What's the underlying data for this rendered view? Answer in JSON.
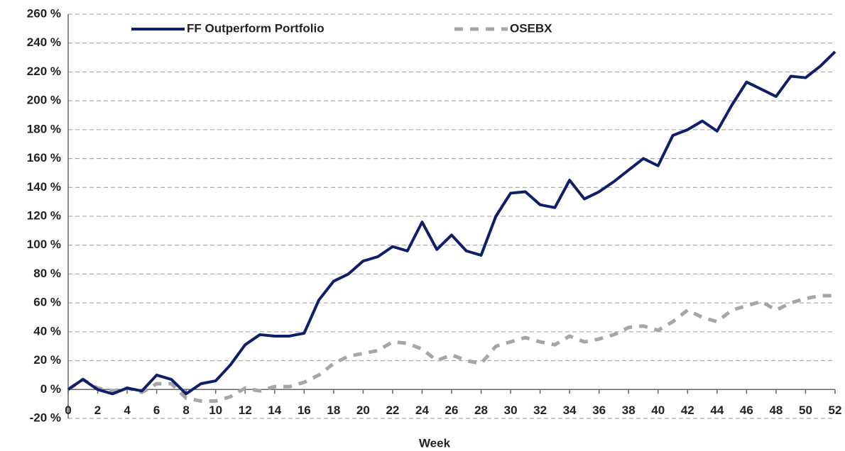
{
  "chart_data": {
    "type": "line",
    "x_label": "Week",
    "x": [
      0,
      1,
      2,
      3,
      4,
      5,
      6,
      7,
      8,
      9,
      10,
      11,
      12,
      13,
      14,
      15,
      16,
      17,
      18,
      19,
      20,
      21,
      22,
      23,
      24,
      25,
      26,
      27,
      28,
      29,
      30,
      31,
      32,
      33,
      34,
      35,
      36,
      37,
      38,
      39,
      40,
      41,
      42,
      43,
      44,
      45,
      46,
      47,
      48,
      49,
      50,
      51,
      52
    ],
    "series": [
      {
        "name": "FF Outperform Portfolio",
        "color": "#0d1f6b",
        "style": "solid",
        "values": [
          0,
          7,
          0,
          -3,
          1,
          -1,
          10,
          7,
          -3,
          4,
          6,
          17,
          31,
          38,
          37,
          37,
          39,
          62,
          75,
          80,
          89,
          92,
          99,
          96,
          116,
          97,
          107,
          96,
          93,
          120,
          136,
          137,
          128,
          126,
          145,
          132,
          137,
          144,
          152,
          160,
          155,
          176,
          180,
          186,
          179,
          197,
          213,
          208,
          203,
          217,
          216,
          224,
          234
        ]
      },
      {
        "name": "OSEBX",
        "color": "#a6a6a6",
        "style": "dashed",
        "values": [
          0,
          7,
          1,
          -1,
          1,
          -2,
          4,
          4,
          -6,
          -8,
          -8,
          -5,
          1,
          -1,
          2,
          2,
          5,
          10,
          18,
          23,
          25,
          27,
          33,
          32,
          28,
          20,
          24,
          20,
          18,
          30,
          33,
          36,
          33,
          31,
          37,
          33,
          35,
          38,
          43,
          44,
          41,
          47,
          55,
          50,
          47,
          55,
          58,
          61,
          55,
          60,
          63,
          65,
          65
        ]
      }
    ],
    "xlim": [
      0,
      52
    ],
    "xticks": [
      0,
      2,
      4,
      6,
      8,
      10,
      12,
      14,
      16,
      18,
      20,
      22,
      24,
      26,
      28,
      30,
      32,
      34,
      36,
      38,
      40,
      42,
      44,
      46,
      48,
      50,
      52
    ],
    "ylim": [
      -20,
      260
    ],
    "yticks": [
      {
        "value": -20,
        "label": "-20 %"
      },
      {
        "value": 0,
        "label": "0 %"
      },
      {
        "value": 20,
        "label": "20 %"
      },
      {
        "value": 40,
        "label": "40 %"
      },
      {
        "value": 60,
        "label": "60 %"
      },
      {
        "value": 80,
        "label": "80 %"
      },
      {
        "value": 100,
        "label": "100 %"
      },
      {
        "value": 120,
        "label": "120 %"
      },
      {
        "value": 140,
        "label": "140 %"
      },
      {
        "value": 160,
        "label": "160 %"
      },
      {
        "value": 180,
        "label": "180 %"
      },
      {
        "value": 200,
        "label": "200 %"
      },
      {
        "value": 220,
        "label": "220 %"
      },
      {
        "value": 240,
        "label": "240 %"
      },
      {
        "value": 260,
        "label": "260 %"
      }
    ],
    "grid": true,
    "legend": "top"
  }
}
